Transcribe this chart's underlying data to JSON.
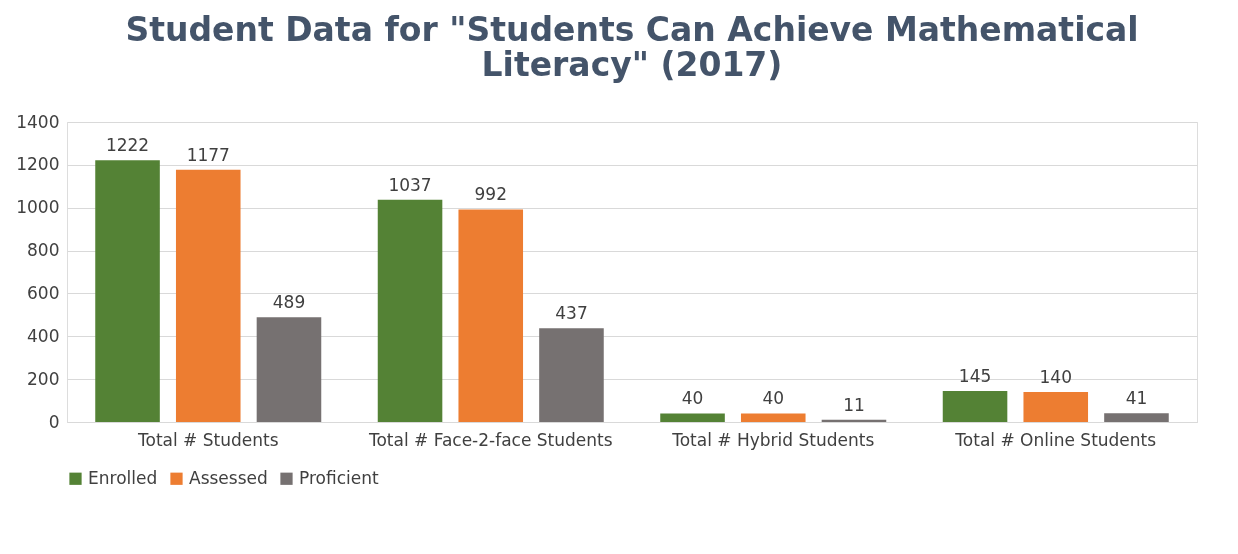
{
  "chart_data": {
    "type": "bar",
    "title": "Student Data for \"Students Can Achieve Mathematical Literacy\" (2017)",
    "categories": [
      "Total # Students",
      "Total # Face-2-face Students",
      "Total # Hybrid Students",
      "Total # Online Students"
    ],
    "series": [
      {
        "name": "Enrolled",
        "color": "#548235",
        "values": [
          1222,
          1037,
          40,
          145
        ]
      },
      {
        "name": "Assessed",
        "color": "#ed7d31",
        "values": [
          1177,
          992,
          40,
          140
        ]
      },
      {
        "name": "Proficient",
        "color": "#767171",
        "values": [
          489,
          437,
          11,
          41
        ]
      }
    ],
    "ylim": [
      0,
      1400
    ],
    "yticks": [
      0,
      200,
      400,
      600,
      800,
      1000,
      1200,
      1400
    ],
    "grid": "y",
    "legend": "bottom",
    "data_labels": true
  }
}
